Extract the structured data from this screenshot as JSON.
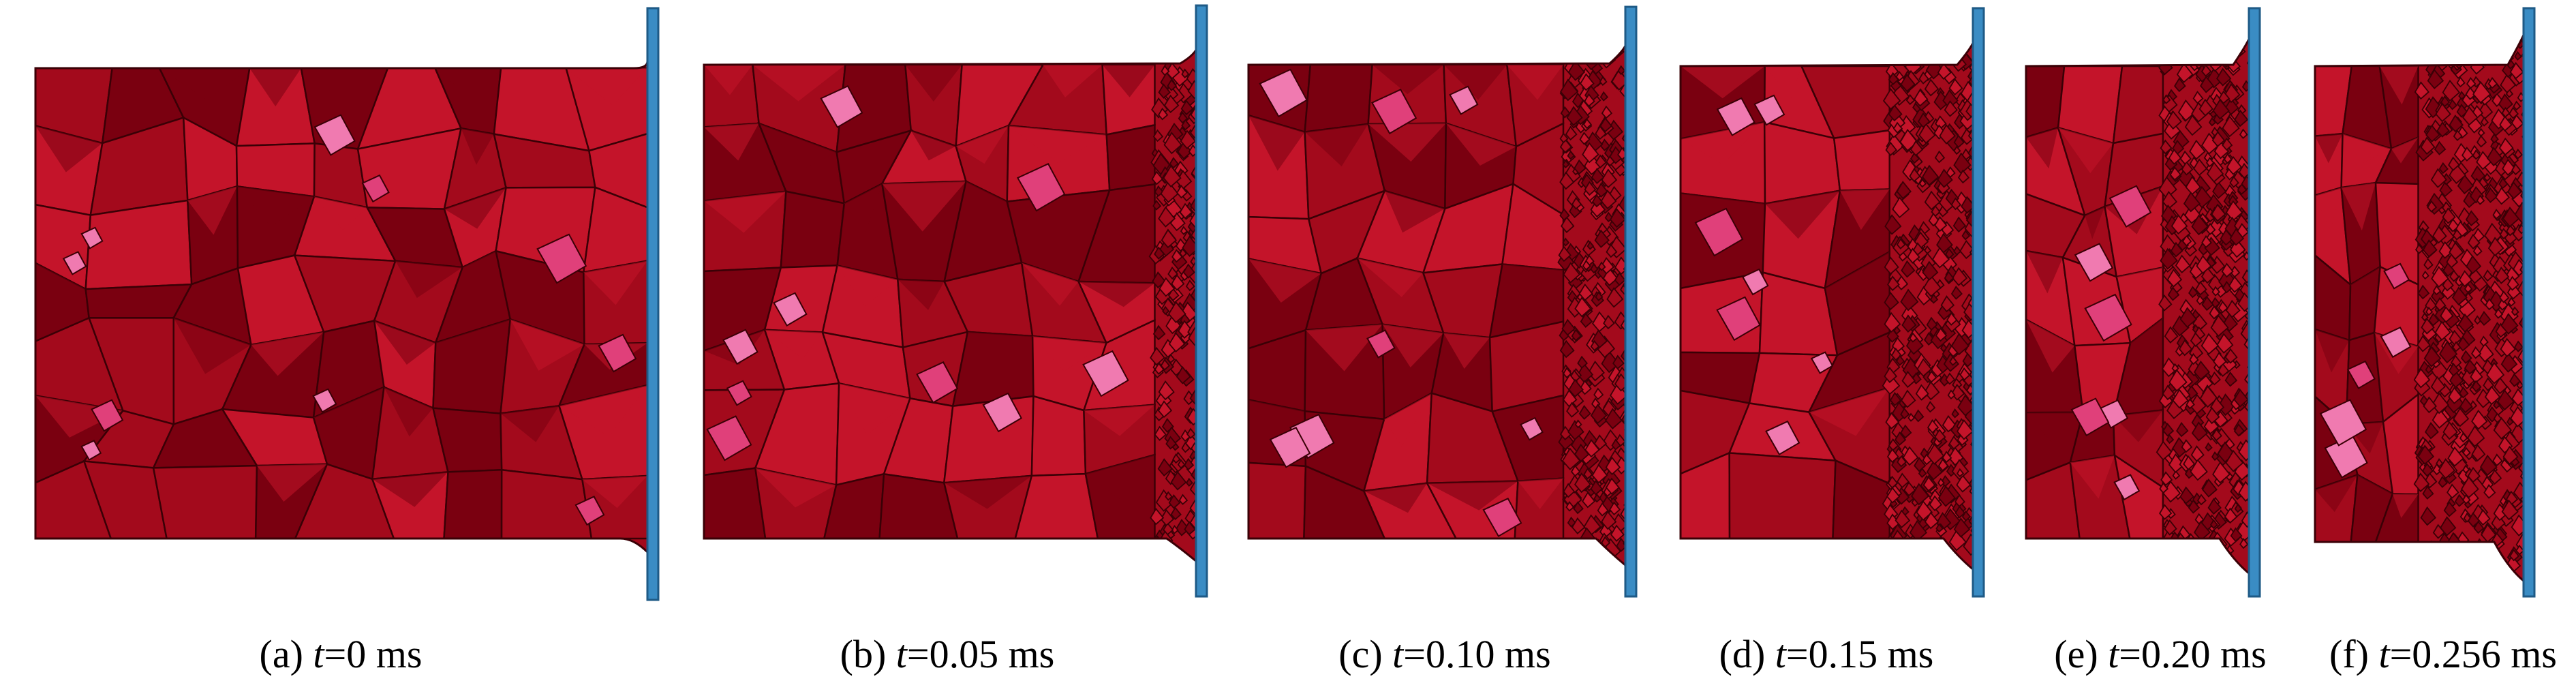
{
  "panels": [
    {
      "key": "a",
      "prefix": "(a) ",
      "variable": "t",
      "value": "=0 ms",
      "time_ms": 0,
      "fracture_front": 0.0
    },
    {
      "key": "b",
      "prefix": "(b) ",
      "variable": "t",
      "value": "=0.05 ms",
      "time_ms": 0.05,
      "fracture_front": 0.08
    },
    {
      "key": "c",
      "prefix": "(c) ",
      "variable": "t",
      "value": "=0.10 ms",
      "time_ms": 0.1,
      "fracture_front": 0.16
    },
    {
      "key": "d",
      "prefix": "(d) ",
      "variable": "t",
      "value": "=0.15 ms",
      "time_ms": 0.15,
      "fracture_front": 0.28
    },
    {
      "key": "e",
      "prefix": "(e) ",
      "variable": "t",
      "value": "=0.20 ms",
      "time_ms": 0.2,
      "fracture_front": 0.38
    },
    {
      "key": "f",
      "prefix": "(f) ",
      "variable": "t",
      "value": "=0.256 ms",
      "time_ms": 0.256,
      "fracture_front": 0.5
    }
  ],
  "colors": {
    "grain_dark": "#7a0010",
    "grain_mid": "#a30a1c",
    "grain_light": "#c4142a",
    "grain_highlight": "#e0407a",
    "grain_pink": "#f07ab0",
    "grain_edge": "#3a0006",
    "plate_fill": "#3a8cc4",
    "plate_edge": "#1e5a86",
    "background": "#ffffff",
    "text": "#000000"
  },
  "icons": {
    "plate": "rigid-wall-plate",
    "specimen": "polycrystal-specimen"
  }
}
